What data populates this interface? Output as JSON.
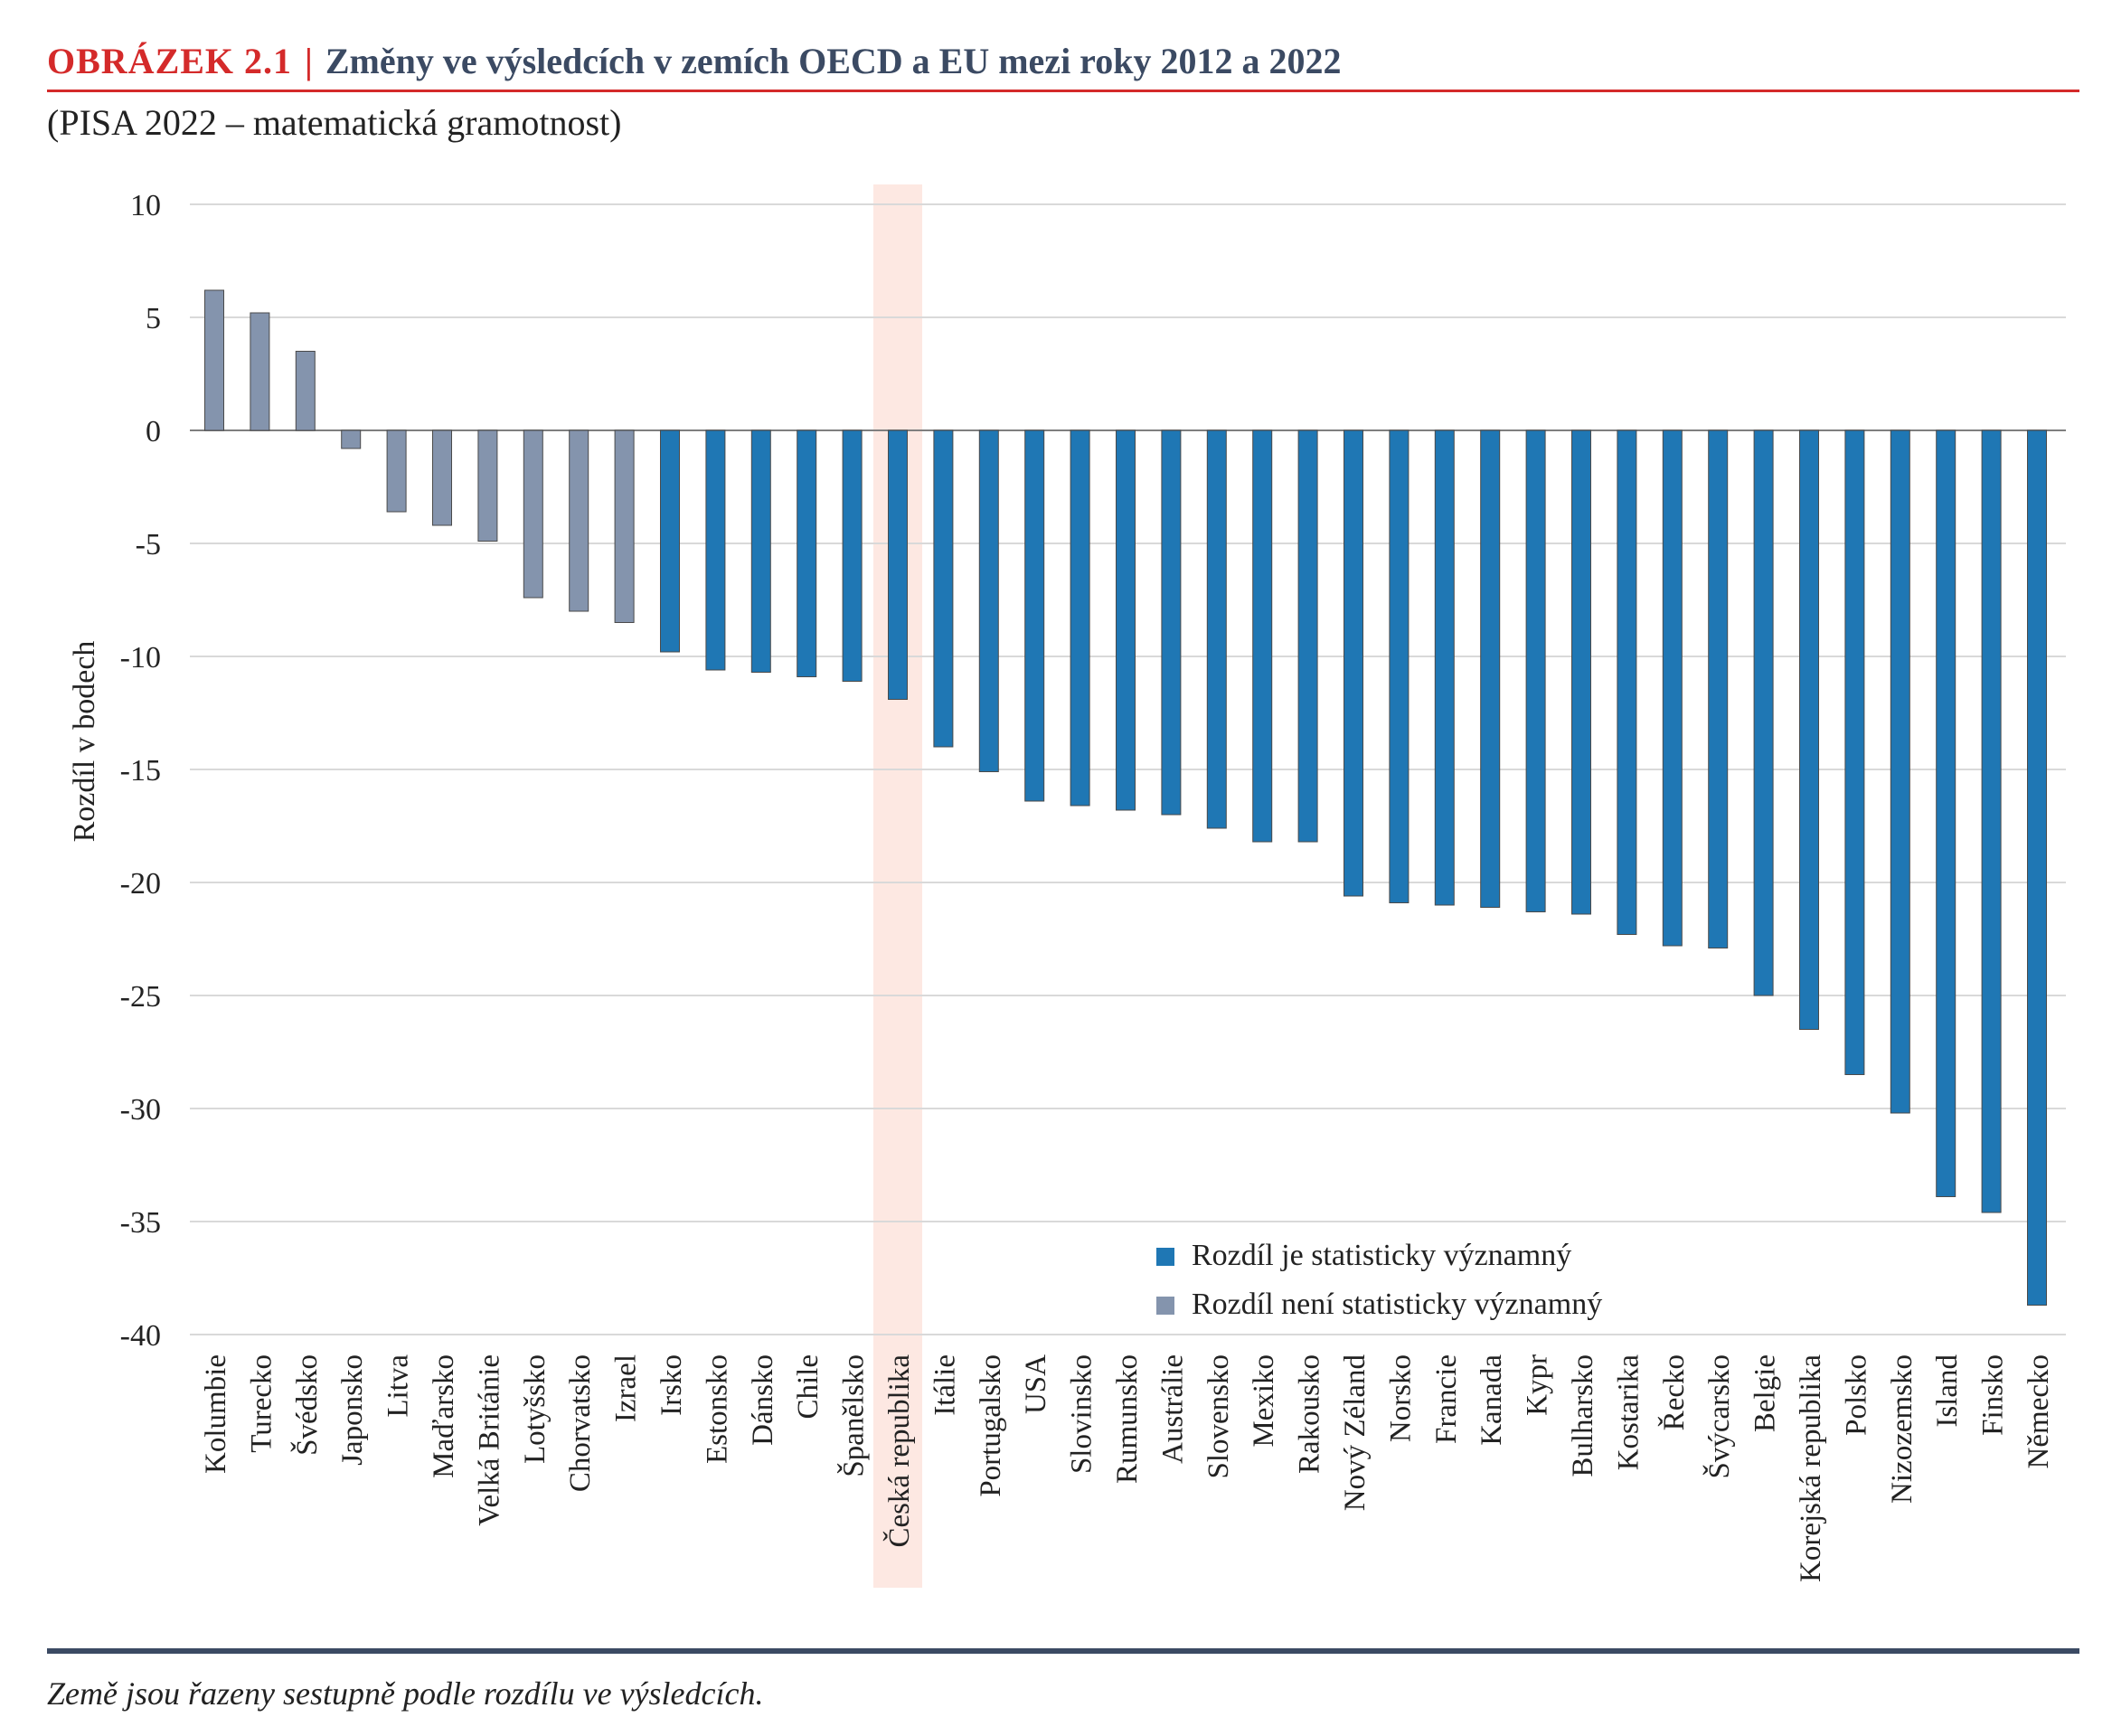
{
  "figure": {
    "label": "OBRÁZEK  2.1",
    "separator": "|",
    "title": "Změny ve výsledcích v zemích OECD a EU mezi roky 2012 a 2022",
    "subtitle": "(PISA 2022 – matematická gramotnost)",
    "note": "Země jsou řazeny sestupně podle rozdílu ve výsledcích."
  },
  "colors": {
    "label_red": "#d42a2a",
    "title_navy": "#3b4a63",
    "significant": "#1f77b4",
    "not_significant": "#8494ad",
    "highlight": "#fde8e2",
    "gridline": "#d9d9d9"
  },
  "chart_data": {
    "type": "bar",
    "title": "",
    "xlabel": "",
    "ylabel": "Rozdíl v bodech",
    "ylim": [
      -40,
      10
    ],
    "yticks": [
      10,
      5,
      0,
      -5,
      -10,
      -15,
      -20,
      -25,
      -30,
      -35,
      -40
    ],
    "yticklabels": [
      "10",
      "5",
      "0",
      "-5",
      "-10",
      "-15",
      "-20",
      "-25",
      "-30",
      "-35",
      "-40"
    ],
    "grid": true,
    "legend_position": "bottom-right",
    "highlighted_category": "Česká republika",
    "categories": [
      "Kolumbie",
      "Turecko",
      "Švédsko",
      "Japonsko",
      "Litva",
      "Maďarsko",
      "Velká Británie",
      "Lotyšsko",
      "Chorvatsko",
      "Izrael",
      "Irsko",
      "Estonsko",
      "Dánsko",
      "Chile",
      "Španělsko",
      "Česká republika",
      "Itálie",
      "Portugalsko",
      "USA",
      "Slovinsko",
      "Rumunsko",
      "Austrálie",
      "Slovensko",
      "Mexiko",
      "Rakousko",
      "Nový Zéland",
      "Norsko",
      "Francie",
      "Kanada",
      "Kypr",
      "Bulharsko",
      "Kostarika",
      "Řecko",
      "Švýcarsko",
      "Belgie",
      "Korejská republika",
      "Polsko",
      "Nizozemsko",
      "Island",
      "Finsko",
      "Německo"
    ],
    "values": [
      6.2,
      5.2,
      3.5,
      -0.8,
      -3.6,
      -4.2,
      -4.9,
      -7.4,
      -8.0,
      -8.5,
      -9.8,
      -10.6,
      -10.7,
      -10.9,
      -11.1,
      -11.9,
      -14.0,
      -15.1,
      -16.4,
      -16.6,
      -16.8,
      -17.0,
      -17.6,
      -18.2,
      -18.2,
      -20.6,
      -20.9,
      -21.0,
      -21.1,
      -21.3,
      -21.4,
      -22.3,
      -22.8,
      -22.9,
      -25.0,
      -26.5,
      -28.5,
      -30.2,
      -33.9,
      -34.6,
      -38.7
    ],
    "significant": [
      false,
      false,
      false,
      false,
      false,
      false,
      false,
      false,
      false,
      false,
      true,
      true,
      true,
      true,
      true,
      true,
      true,
      true,
      true,
      true,
      true,
      true,
      true,
      true,
      true,
      true,
      true,
      true,
      true,
      true,
      true,
      true,
      true,
      true,
      true,
      true,
      true,
      true,
      true,
      true,
      true
    ],
    "legend": [
      {
        "key": "significant",
        "label": "Rozdíl je statisticky významný",
        "color": "#1f77b4"
      },
      {
        "key": "not_significant",
        "label": "Rozdíl není statisticky významný",
        "color": "#8494ad"
      }
    ]
  }
}
